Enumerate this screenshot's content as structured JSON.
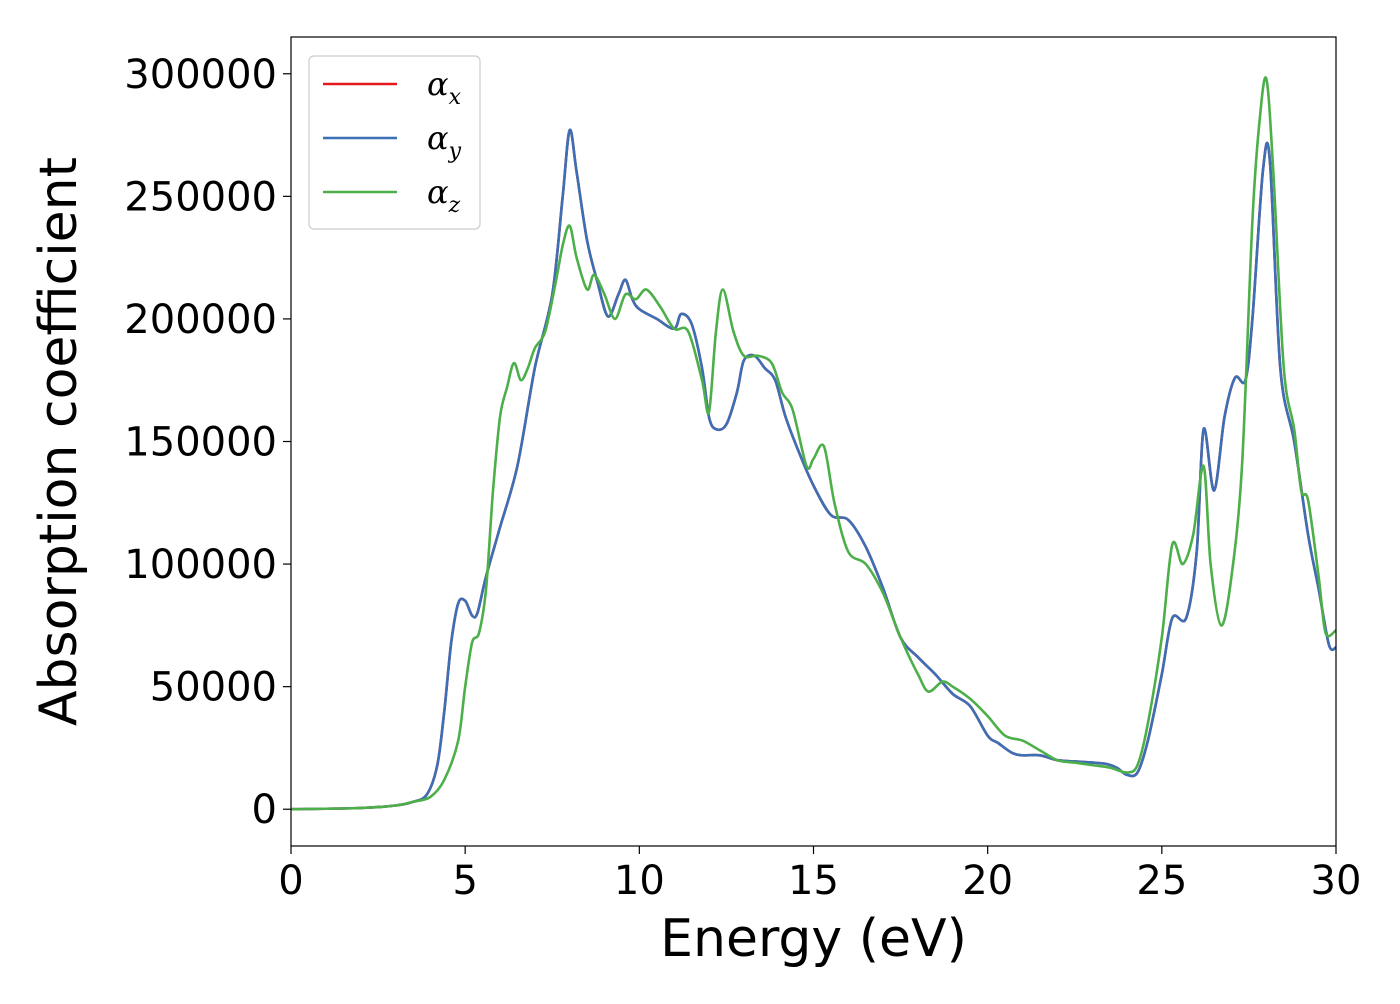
{
  "chart_data": {
    "type": "line",
    "title": "",
    "xlabel": "Energy (eV)",
    "ylabel": "Absorption coefficient",
    "xlim": [
      0,
      30
    ],
    "ylim": [
      -15000,
      315000
    ],
    "xticks": [
      0,
      5,
      10,
      15,
      20,
      25,
      30
    ],
    "xtick_labels": [
      "0",
      "5",
      "10",
      "15",
      "20",
      "25",
      "30"
    ],
    "yticks": [
      0,
      50000,
      100000,
      150000,
      200000,
      250000,
      300000
    ],
    "ytick_labels": [
      "0",
      "50000",
      "100000",
      "150000",
      "200000",
      "250000",
      "300000"
    ],
    "grid": false,
    "legend_position": "top-left",
    "series": [
      {
        "name": "αx",
        "name_main": "α",
        "name_sub": "x",
        "color": "#e41a1c",
        "x": [
          0,
          2,
          3,
          3.5,
          3.9,
          4.2,
          4.4,
          4.6,
          4.8,
          5.0,
          5.2,
          5.35,
          5.6,
          6.0,
          6.5,
          7.0,
          7.5,
          7.8,
          8.0,
          8.2,
          8.5,
          8.8,
          9.1,
          9.4,
          9.6,
          9.8,
          10.0,
          10.5,
          11.0,
          11.2,
          11.5,
          11.8,
          12.0,
          12.2,
          12.5,
          12.8,
          13.0,
          13.3,
          13.6,
          13.9,
          14.2,
          14.6,
          15.0,
          15.5,
          16.0,
          16.5,
          17.0,
          17.5,
          18.0,
          18.5,
          19.0,
          19.5,
          20.0,
          20.3,
          20.7,
          21.0,
          21.5,
          22.0,
          22.5,
          23.0,
          23.4,
          23.7,
          24.0,
          24.3,
          24.6,
          25.0,
          25.3,
          25.7,
          26.0,
          26.2,
          26.5,
          26.8,
          27.1,
          27.4,
          27.6,
          27.9,
          28.1,
          28.4,
          28.8,
          29.2,
          29.5,
          29.8,
          30.0
        ],
        "values": [
          0,
          500,
          1500,
          3000,
          6000,
          18000,
          40000,
          68000,
          84000,
          85000,
          79000,
          80000,
          95000,
          115000,
          140000,
          180000,
          210000,
          250000,
          277000,
          260000,
          232000,
          215000,
          201000,
          210000,
          216000,
          208000,
          204000,
          200000,
          196000,
          202000,
          198000,
          180000,
          160000,
          155000,
          157000,
          170000,
          183000,
          185000,
          180000,
          175000,
          160000,
          145000,
          132000,
          120000,
          118000,
          107000,
          90000,
          70000,
          62000,
          55000,
          47000,
          42000,
          30000,
          27000,
          23000,
          22000,
          22000,
          20000,
          19500,
          19000,
          18500,
          17000,
          14000,
          15000,
          28000,
          55000,
          78000,
          78000,
          105000,
          155000,
          130000,
          160000,
          176000,
          175000,
          200000,
          260000,
          265000,
          180000,
          150000,
          112000,
          90000,
          67000,
          66000
        ]
      },
      {
        "name": "αy",
        "name_main": "α",
        "name_sub": "y",
        "color": "#3b6fb6",
        "x": [
          0,
          2,
          3,
          3.5,
          3.9,
          4.2,
          4.4,
          4.6,
          4.8,
          5.0,
          5.2,
          5.35,
          5.6,
          6.0,
          6.5,
          7.0,
          7.5,
          7.8,
          8.0,
          8.2,
          8.5,
          8.8,
          9.1,
          9.4,
          9.6,
          9.8,
          10.0,
          10.5,
          11.0,
          11.2,
          11.5,
          11.8,
          12.0,
          12.2,
          12.5,
          12.8,
          13.0,
          13.3,
          13.6,
          13.9,
          14.2,
          14.6,
          15.0,
          15.5,
          16.0,
          16.5,
          17.0,
          17.5,
          18.0,
          18.5,
          19.0,
          19.5,
          20.0,
          20.3,
          20.7,
          21.0,
          21.5,
          22.0,
          22.5,
          23.0,
          23.4,
          23.7,
          24.0,
          24.3,
          24.6,
          25.0,
          25.3,
          25.7,
          26.0,
          26.2,
          26.5,
          26.8,
          27.1,
          27.4,
          27.6,
          27.9,
          28.1,
          28.4,
          28.8,
          29.2,
          29.5,
          29.8,
          30.0
        ],
        "values": [
          0,
          500,
          1500,
          3000,
          6000,
          18000,
          40000,
          68000,
          84000,
          85000,
          79000,
          80000,
          95000,
          115000,
          140000,
          180000,
          210000,
          250000,
          277000,
          260000,
          232000,
          215000,
          201000,
          210000,
          216000,
          208000,
          204000,
          200000,
          196000,
          202000,
          198000,
          180000,
          160000,
          155000,
          157000,
          170000,
          183000,
          185000,
          180000,
          175000,
          160000,
          145000,
          132000,
          120000,
          118000,
          107000,
          90000,
          70000,
          62000,
          55000,
          47000,
          42000,
          30000,
          27000,
          23000,
          22000,
          22000,
          20000,
          19500,
          19000,
          18500,
          17000,
          14000,
          15000,
          28000,
          55000,
          78000,
          78000,
          105000,
          155000,
          130000,
          160000,
          176000,
          175000,
          200000,
          260000,
          265000,
          180000,
          150000,
          112000,
          90000,
          67000,
          66000
        ]
      },
      {
        "name": "αz",
        "name_main": "α",
        "name_sub": "z",
        "color": "#4daf4a",
        "x": [
          0,
          2,
          3,
          3.5,
          4.0,
          4.4,
          4.8,
          5.0,
          5.2,
          5.4,
          5.6,
          5.8,
          6.0,
          6.2,
          6.4,
          6.6,
          6.8,
          7.0,
          7.3,
          7.6,
          7.8,
          8.0,
          8.2,
          8.5,
          8.7,
          9.0,
          9.3,
          9.6,
          9.9,
          10.2,
          10.6,
          11.0,
          11.4,
          11.8,
          12.0,
          12.2,
          12.4,
          12.7,
          13.0,
          13.4,
          13.8,
          14.1,
          14.4,
          14.8,
          15.0,
          15.3,
          15.6,
          16.0,
          16.5,
          17.0,
          17.5,
          18.0,
          18.3,
          18.7,
          19.0,
          19.5,
          20.0,
          20.5,
          21.0,
          21.5,
          22.0,
          22.5,
          23.0,
          23.5,
          24.0,
          24.3,
          24.6,
          25.0,
          25.3,
          25.6,
          25.9,
          26.2,
          26.4,
          26.7,
          27.0,
          27.3,
          27.6,
          27.8,
          28.0,
          28.2,
          28.5,
          28.8,
          29.0,
          29.2,
          29.5,
          29.7,
          30.0
        ],
        "values": [
          0,
          500,
          1500,
          3000,
          5000,
          12000,
          28000,
          50000,
          68000,
          72000,
          90000,
          130000,
          160000,
          172000,
          182000,
          175000,
          180000,
          188000,
          195000,
          215000,
          230000,
          238000,
          225000,
          212000,
          218000,
          210000,
          200000,
          210000,
          208000,
          212000,
          205000,
          196000,
          195000,
          175000,
          162000,
          195000,
          212000,
          195000,
          185000,
          185000,
          182000,
          170000,
          163000,
          140000,
          143000,
          148000,
          125000,
          105000,
          100000,
          88000,
          70000,
          55000,
          48000,
          52000,
          50000,
          45000,
          38000,
          30000,
          28000,
          24000,
          20000,
          19000,
          18000,
          17000,
          15000,
          18000,
          35000,
          70000,
          108000,
          100000,
          112000,
          140000,
          100000,
          75000,
          95000,
          140000,
          240000,
          280000,
          298000,
          260000,
          180000,
          155000,
          130000,
          126000,
          95000,
          72000,
          73000
        ]
      }
    ]
  }
}
